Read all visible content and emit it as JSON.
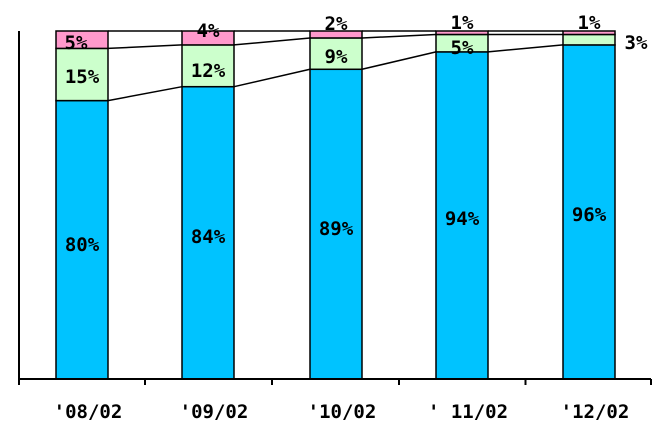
{
  "chart_data": {
    "type": "bar",
    "stacked": true,
    "percent": true,
    "categories": [
      "'08/02",
      "'09/02",
      "'10/02",
      "' 11/02",
      "'12/02"
    ],
    "series": [
      {
        "values": [
          80,
          84,
          89,
          94,
          96
        ],
        "color": "#00c3ff",
        "labels": [
          "80%",
          "84%",
          "89%",
          "94%",
          "96%"
        ]
      },
      {
        "values": [
          15,
          12,
          9,
          5,
          3
        ],
        "color": "#ccffcc",
        "labels": [
          "15%",
          "12%",
          "9%",
          "5%",
          "3%"
        ]
      },
      {
        "values": [
          5,
          4,
          2,
          1,
          1
        ],
        "color": "#ff99cc",
        "labels": [
          "5%",
          "4%",
          "2%",
          "1%",
          "1%"
        ]
      }
    ],
    "ylim": [
      0,
      100
    ],
    "grid": false,
    "legend": "none",
    "series_lines": true,
    "title": "",
    "xlabel": "",
    "ylabel": ""
  }
}
